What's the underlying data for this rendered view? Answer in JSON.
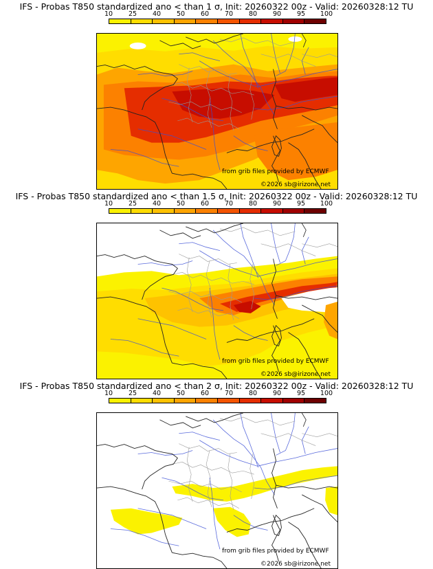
{
  "colors": {
    "bin_colors": [
      "#fbf200",
      "#ffdd00",
      "#fec200",
      "#fea500",
      "#fc8100",
      "#f45400",
      "#e52d00",
      "#c70d00",
      "#a00000",
      "#6e0000"
    ],
    "coast": "#222222",
    "rivers": "#3b4fd6",
    "borders": "#9a9a9a"
  },
  "panels": [
    {
      "title": "IFS - Probas T850  standardized ano < than 1 σ, Init: 20260322 00z - Valid: 20260328:12 TU",
      "threshold": "1 σ",
      "colorbar_ticks": [
        "10",
        "25",
        "40",
        "50",
        "60",
        "70",
        "80",
        "90",
        "95",
        "100"
      ],
      "credit": "from grib files provided by ECMWF",
      "copyright": "©2026 sb@irizone.net"
    },
    {
      "title": "IFS - Probas T850  standardized ano < than 1.5 σ, Init: 20260322 00z - Valid: 20260328:12 TU",
      "threshold": "1.5 σ",
      "colorbar_ticks": [
        "10",
        "25",
        "40",
        "50",
        "60",
        "70",
        "80",
        "90",
        "95",
        "100"
      ],
      "credit": "from grib files provided by ECMWF",
      "copyright": "©2026 sb@irizone.net"
    },
    {
      "title": "IFS - Probas T850  standardized ano < than 2 σ, Init: 20260322 00z - Valid: 20260328:12 TU",
      "threshold": "2 σ",
      "colorbar_ticks": [
        "10",
        "25",
        "40",
        "50",
        "60",
        "70",
        "80",
        "90",
        "95",
        "100"
      ],
      "credit": "from grib files provided by ECMWF",
      "copyright": "©2026 sb@irizone.net"
    }
  ]
}
